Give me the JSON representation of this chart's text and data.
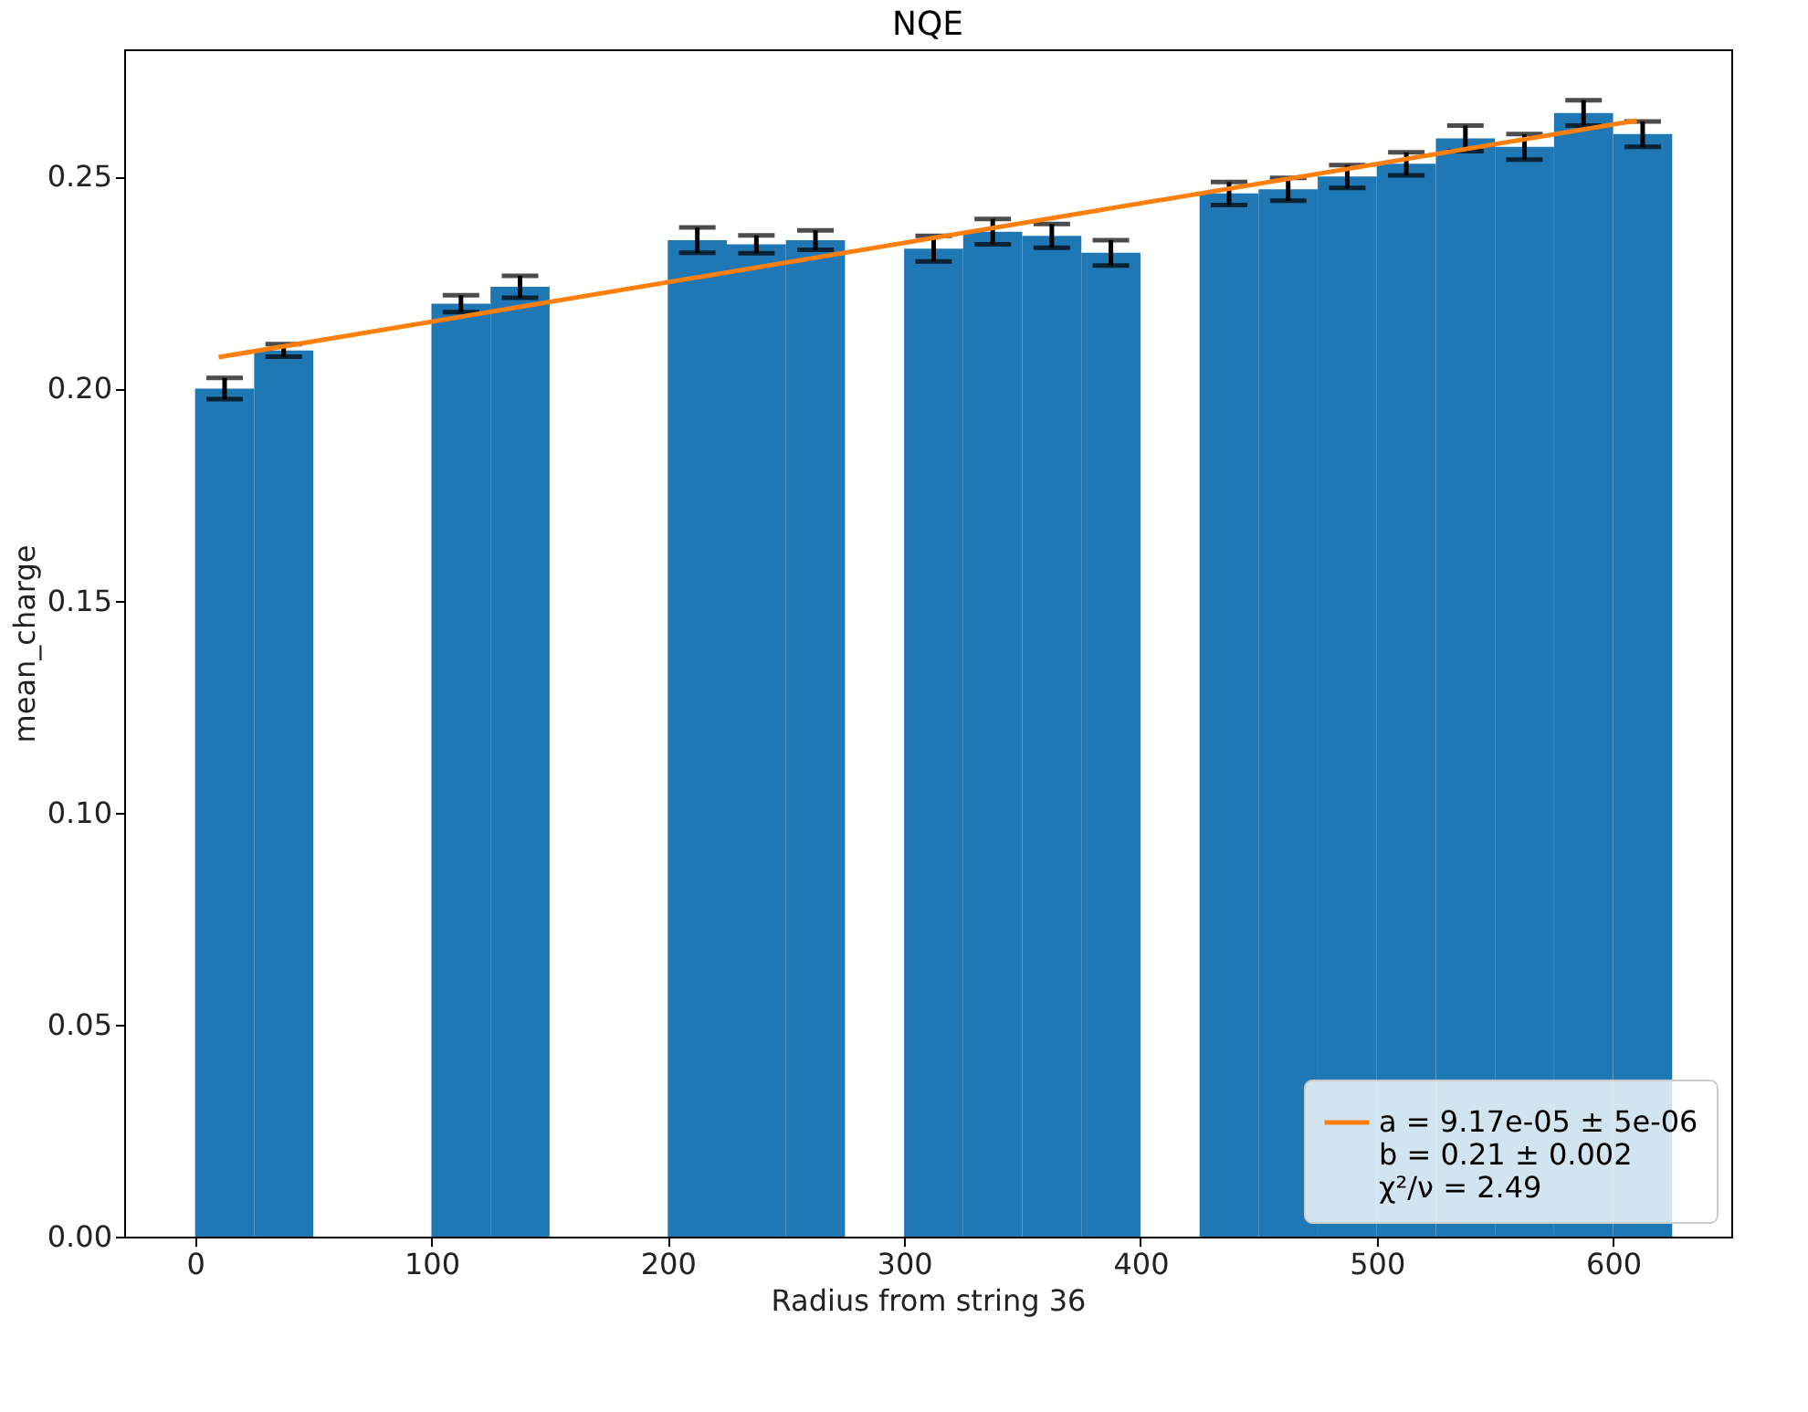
{
  "chart_data": {
    "type": "bar",
    "title": "NQE",
    "xlabel": "Radius from string 36",
    "ylabel": "mean_charge",
    "x": [
      12.5,
      37.5,
      112.5,
      137.5,
      212.5,
      237.5,
      262.5,
      312.5,
      337.5,
      362.5,
      387.5,
      437.5,
      462.5,
      487.5,
      512.5,
      537.5,
      562.5,
      587.5,
      612.5
    ],
    "series": [
      {
        "type": "bar",
        "color": "#1f77b4",
        "values": [
          0.2,
          0.209,
          0.22,
          0.224,
          0.235,
          0.234,
          0.235,
          0.233,
          0.237,
          0.236,
          0.232,
          0.246,
          0.247,
          0.25,
          0.253,
          0.259,
          0.257,
          0.265,
          0.26
        ],
        "errors": [
          0.0025,
          0.0015,
          0.002,
          0.0026,
          0.003,
          0.0021,
          0.0023,
          0.003,
          0.003,
          0.0028,
          0.003,
          0.0027,
          0.0027,
          0.0027,
          0.0027,
          0.003,
          0.003,
          0.003,
          0.003
        ]
      },
      {
        "type": "line",
        "name": "a = 9.17e-05 ± 5e-06\nb = 0.21 ± 0.002\nχ²/ν = 2.49",
        "color": "#ff7f0e",
        "x": [
          10,
          610
        ],
        "values": [
          0.2074,
          0.2632
        ]
      }
    ],
    "xlim": [
      -30,
      650
    ],
    "xticks": [
      0,
      100,
      200,
      300,
      400,
      500,
      600
    ],
    "ylim": [
      0,
      0.28
    ],
    "yticks": [
      {
        "value": 0,
        "label": "0.00"
      },
      {
        "value": 0.05,
        "label": "0.05"
      },
      {
        "value": 0.1,
        "label": "0.10"
      },
      {
        "value": 0.15,
        "label": "0.15"
      },
      {
        "value": 0.2,
        "label": "0.20"
      },
      {
        "value": 0.25,
        "label": "0.25"
      }
    ],
    "grid": false,
    "legend": "bottom right"
  }
}
